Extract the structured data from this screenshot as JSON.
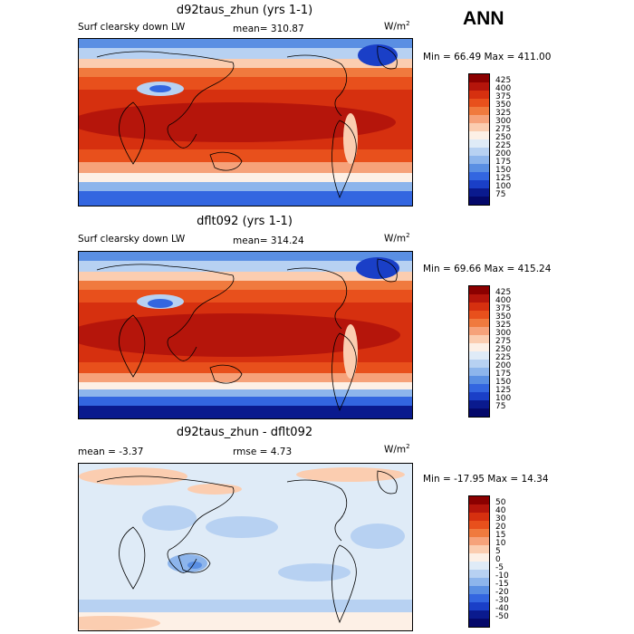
{
  "season": "ANN",
  "panels": [
    {
      "title": "d92taus_zhun (yrs 1-1)",
      "var_label": "Surf clearsky down LW",
      "stat_text": "mean=  310.87",
      "units_base": "W/m",
      "units_exp": "2",
      "minmax_text": "Min =   66.49 Max =  411.00",
      "colorbar": {
        "labels": [
          "425",
          "400",
          "375",
          "350",
          "325",
          "300",
          "275",
          "250",
          "225",
          "200",
          "175",
          "150",
          "125",
          "100",
          "75"
        ],
        "colors": [
          "#8b0000",
          "#b5150b",
          "#d6300f",
          "#e8501c",
          "#f07a3e",
          "#f6a27a",
          "#fbcdb0",
          "#fdf0e6",
          "#dfebf7",
          "#b7d1f2",
          "#8db5ec",
          "#5a8fe3",
          "#3366e0",
          "#1a3fc7",
          "#0a1a8e",
          "#04086a"
        ]
      }
    },
    {
      "title": "dflt092 (yrs 1-1)",
      "var_label": "Surf clearsky down LW",
      "stat_text": "mean=  314.24",
      "units_base": "W/m",
      "units_exp": "2",
      "minmax_text": "Min =   69.66 Max =  415.24",
      "colorbar": {
        "labels": [
          "425",
          "400",
          "375",
          "350",
          "325",
          "300",
          "275",
          "250",
          "225",
          "200",
          "175",
          "150",
          "125",
          "100",
          "75"
        ],
        "colors": [
          "#8b0000",
          "#b5150b",
          "#d6300f",
          "#e8501c",
          "#f07a3e",
          "#f6a27a",
          "#fbcdb0",
          "#fdf0e6",
          "#dfebf7",
          "#b7d1f2",
          "#8db5ec",
          "#5a8fe3",
          "#3366e0",
          "#1a3fc7",
          "#0a1a8e",
          "#04086a"
        ]
      }
    },
    {
      "title": "d92taus_zhun - dflt092",
      "mean_text": "mean =   -3.37",
      "rmse_text": "rmse =    4.73",
      "units_base": "W/m",
      "units_exp": "2",
      "minmax_text": "Min = -17.95 Max =   14.34",
      "colorbar": {
        "labels": [
          "50",
          "40",
          "30",
          "20",
          "15",
          "10",
          "5",
          "0",
          "-5",
          "-10",
          "-15",
          "-20",
          "-30",
          "-40",
          "-50"
        ],
        "colors": [
          "#8b0000",
          "#b5150b",
          "#d6300f",
          "#e8501c",
          "#f07a3e",
          "#f6a27a",
          "#fbcdb0",
          "#fdf0e6",
          "#dfebf7",
          "#b7d1f2",
          "#8db5ec",
          "#5a8fe3",
          "#3366e0",
          "#1a3fc7",
          "#0a1a8e",
          "#04086a"
        ]
      }
    }
  ],
  "chart_data": [
    {
      "type": "heatmap",
      "title": "d92taus_zhun (yrs 1-1)",
      "variable": "Surf clearsky down LW",
      "units": "W/m^2",
      "mean": 310.87,
      "min": 66.49,
      "max": 411.0,
      "contour_levels": [
        75,
        100,
        125,
        150,
        175,
        200,
        225,
        250,
        275,
        300,
        325,
        350,
        375,
        400,
        425
      ]
    },
    {
      "type": "heatmap",
      "title": "dflt092 (yrs 1-1)",
      "variable": "Surf clearsky down LW",
      "units": "W/m^2",
      "mean": 314.24,
      "min": 69.66,
      "max": 415.24,
      "contour_levels": [
        75,
        100,
        125,
        150,
        175,
        200,
        225,
        250,
        275,
        300,
        325,
        350,
        375,
        400,
        425
      ]
    },
    {
      "type": "heatmap",
      "title": "d92taus_zhun - dflt092",
      "units": "W/m^2",
      "mean": -3.37,
      "rmse": 4.73,
      "min": -17.95,
      "max": 14.34,
      "contour_levels": [
        -50,
        -40,
        -30,
        -20,
        -15,
        -10,
        -5,
        0,
        5,
        10,
        15,
        20,
        30,
        40,
        50
      ]
    }
  ]
}
